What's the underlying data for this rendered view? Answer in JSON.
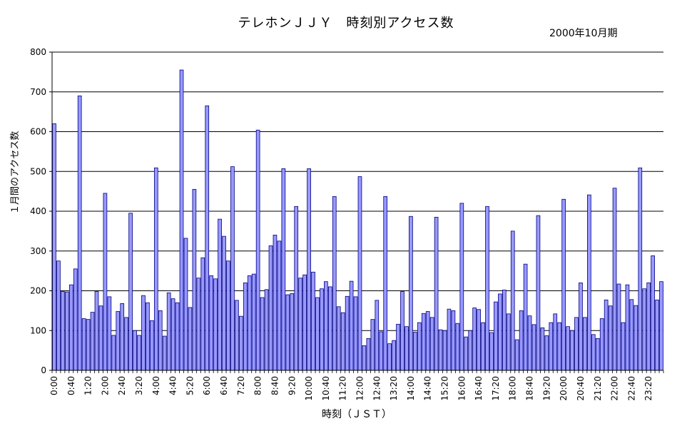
{
  "chart_data": {
    "type": "bar",
    "title": "テレホンＪＪＹ　時刻別アクセス数",
    "subtitle": "2000年10月期",
    "xlabel": "時刻（ＪＳＴ）",
    "ylabel": "１月間のアクセス数",
    "ylim": [
      0,
      800
    ],
    "yticks": [
      0,
      100,
      200,
      300,
      400,
      500,
      600,
      700,
      800
    ],
    "grid": true,
    "bar_color": "#9999ff",
    "bar_edge": "#000080",
    "tick_labels": [
      "0:00",
      "0:40",
      "1:20",
      "2:00",
      "2:40",
      "3:20",
      "4:00",
      "4:40",
      "5:20",
      "6:00",
      "6:40",
      "7:20",
      "8:00",
      "8:40",
      "9:20",
      "10:00",
      "10:40",
      "11:20",
      "12:00",
      "12:40",
      "13:20",
      "14:00",
      "14:40",
      "15:20",
      "16:00",
      "16:40",
      "17:20",
      "18:00",
      "18:40",
      "19:20",
      "20:00",
      "20:40",
      "21:20",
      "22:00",
      "22:40",
      "23:20"
    ],
    "values": [
      620,
      275,
      198,
      197,
      215,
      255,
      690,
      130,
      128,
      146,
      198,
      162,
      445,
      185,
      88,
      148,
      168,
      133,
      395,
      100,
      88,
      188,
      170,
      125,
      509,
      150,
      86,
      195,
      180,
      170,
      755,
      332,
      158,
      455,
      232,
      283,
      665,
      238,
      230,
      380,
      337,
      275,
      512,
      176,
      136,
      220,
      238,
      242,
      604,
      183,
      203,
      313,
      340,
      325,
      507,
      190,
      193,
      412,
      232,
      240,
      507,
      247,
      183,
      205,
      223,
      210,
      437,
      160,
      145,
      186,
      224,
      185,
      487,
      62,
      80,
      128,
      176,
      97,
      437,
      67,
      75,
      116,
      198,
      110,
      387,
      96,
      120,
      143,
      148,
      133,
      385,
      102,
      100,
      154,
      150,
      118,
      420,
      84,
      100,
      157,
      153,
      120,
      412,
      95,
      172,
      192,
      202,
      142,
      350,
      77,
      150,
      267,
      137,
      115,
      389,
      107,
      87,
      120,
      142,
      120,
      430,
      110,
      100,
      133,
      220,
      133,
      441,
      90,
      80,
      130,
      177,
      162,
      458,
      217,
      120,
      215,
      178,
      163,
      509,
      205,
      220,
      288,
      177,
      223
    ]
  }
}
